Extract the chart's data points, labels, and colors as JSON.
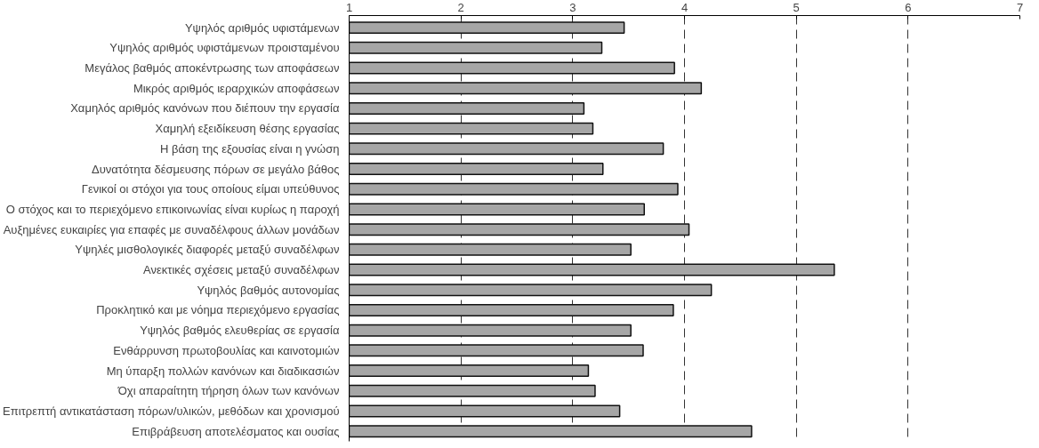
{
  "chart_data": {
    "type": "bar",
    "orientation": "horizontal",
    "categories": [
      "Υψηλός αριθμός υφιστάμενων",
      "Υψηλός αριθμός υφιστάμενων προισταμένου",
      "Μεγάλος βαθμός αποκέντρωσης των αποφάσεων",
      "Μικρός αριθμός ιεραρχικών αποφάσεων",
      "Χαμηλός αριθμός κανόνων που διέπουν την εργασία",
      "Χαμηλή εξειδίκευση θέσης εργασίας",
      "Η βάση της εξουσίας είναι η γνώση",
      "Δυνατότητα δέσμευσης πόρων σε μεγάλο βάθος",
      "Γενικοί οι στόχοι για τους οποίους είμαι υπεύθυνος",
      "Ο στόχος και το περιεχόμενο επικοινωνίας είναι κυρίως η παροχή",
      "Αυξημένες ευκαιρίες για επαφές με συναδέλφους άλλων μονάδων",
      "Υψηλές μισθολογικές διαφορές μεταξύ συναδέλφων",
      "Ανεκτικές σχέσεις μεταξύ συναδέλφων",
      "Υψηλός βαθμός αυτονομίας",
      "Προκλητικό και με νόημα περιεχόμενο εργασίας",
      "Υψηλός βαθμός ελευθερίας σε εργασία",
      "Ενθάρρυνση πρωτοβουλίας και καινοτομιών",
      "Μη ύπαρξη πολλών κανόνων και διαδικασιών",
      "Όχι απαραίτητη τήρηση όλων των κανόνων",
      "Επιτρεπτή αντικατάσταση πόρων/υλικών, μεθόδων και χρονισμού",
      "Επιβράβευση αποτελέσματος και ουσίας"
    ],
    "values": [
      3.46,
      3.26,
      3.91,
      4.15,
      3.1,
      3.18,
      3.81,
      3.27,
      3.94,
      3.64,
      4.04,
      3.52,
      5.34,
      4.24,
      3.9,
      3.52,
      3.63,
      3.14,
      3.2,
      3.42,
      4.6
    ],
    "color": "#a6a6a6",
    "xlim": [
      1,
      7
    ],
    "xticks": [
      1,
      2,
      3,
      4,
      5,
      6,
      7
    ],
    "grid": "x",
    "line_style": "dashed"
  }
}
